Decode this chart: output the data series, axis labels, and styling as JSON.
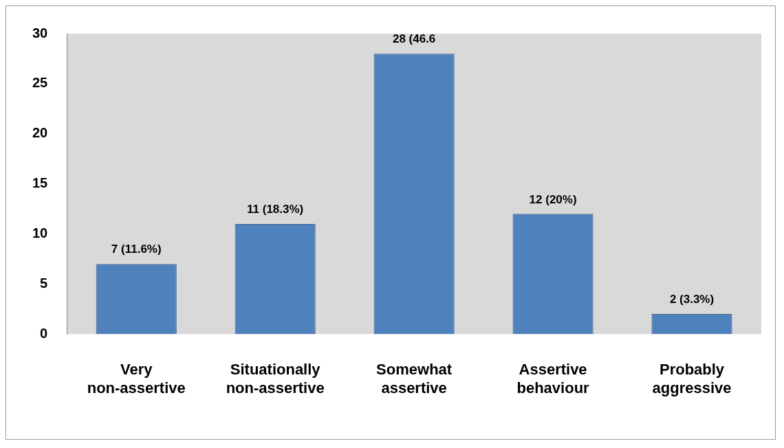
{
  "chart_data": {
    "type": "bar",
    "categories": [
      "Very non-assertive",
      "Situationally non-assertive",
      "Somewhat assertive",
      "Assertive behaviour",
      "Probably aggressive"
    ],
    "values": [
      7,
      11,
      28,
      12,
      2
    ],
    "color": "#4f81bd",
    "value_labels": [
      "7 (11.6%)",
      "11 (18.3%)",
      "28 (46.6",
      "12 (20%)",
      "2 (3.3%)"
    ],
    "ylim": [
      0,
      30
    ],
    "yticks": [
      0,
      5,
      10,
      15,
      20,
      25,
      30
    ],
    "grid": false,
    "legend": false
  }
}
